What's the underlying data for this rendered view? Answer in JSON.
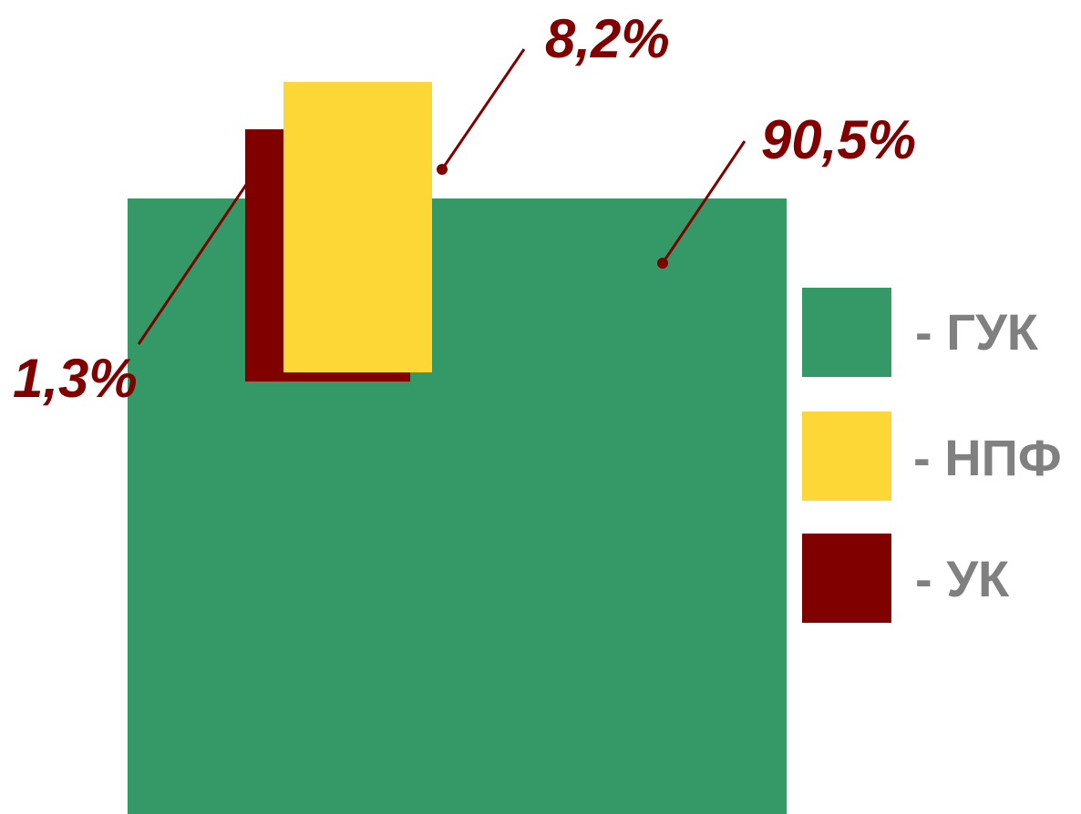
{
  "chart_data": {
    "type": "area",
    "title": "",
    "unit": "%",
    "series": [
      {
        "name": "ГУК",
        "value": 90.5,
        "label": "90,5%",
        "color": "#349966"
      },
      {
        "name": "НПФ",
        "value": 8.2,
        "label": "8,2%",
        "color": "#fdd735"
      },
      {
        "name": "УК",
        "value": 1.3,
        "label": "1,3%",
        "color": "#800000"
      }
    ],
    "legend": {
      "placement": "right",
      "items": [
        {
          "label": "- ГУК",
          "color": "#349966"
        },
        {
          "label": "- НПФ",
          "color": "#fdd735"
        },
        {
          "label": "- УК",
          "color": "#800000"
        }
      ]
    },
    "label_color": "#800000",
    "legend_text_color": "#808080"
  }
}
